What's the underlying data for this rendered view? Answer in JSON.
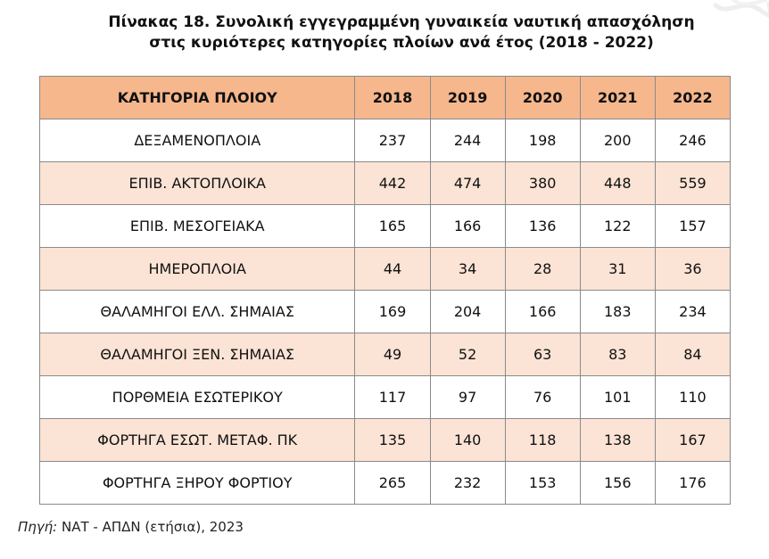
{
  "title": {
    "line1": "Πίνακας 18. Συνολική εγγεγραμμένη γυναικεία ναυτική απασχόληση",
    "line2": "στις κυριότερες κατηγορίες πλοίων ανά έτος (2018 - 2022)"
  },
  "table": {
    "headers": [
      "ΚΑΤΗΓΟΡΙΑ ΠΛΟΙΟΥ",
      "2018",
      "2019",
      "2020",
      "2021",
      "2022"
    ],
    "rows": [
      [
        "ΔΕΞΑΜΕΝΟΠΛΟΙΑ",
        "237",
        "244",
        "198",
        "200",
        "246"
      ],
      [
        "ΕΠΙΒ. ΑΚΤΟΠΛΟΙΚΑ",
        "442",
        "474",
        "380",
        "448",
        "559"
      ],
      [
        "ΕΠΙΒ. ΜΕΣΟΓΕΙΑΚΑ",
        "165",
        "166",
        "136",
        "122",
        "157"
      ],
      [
        "ΗΜΕΡΟΠΛΟΙΑ",
        "44",
        "34",
        "28",
        "31",
        "36"
      ],
      [
        "ΘΑΛΑΜΗΓΟΙ ΕΛΛ. ΣΗΜΑΙΑΣ",
        "169",
        "204",
        "166",
        "183",
        "234"
      ],
      [
        "ΘΑΛΑΜΗΓΟΙ ΞΕΝ. ΣΗΜΑΙΑΣ",
        "49",
        "52",
        "63",
        "83",
        "84"
      ],
      [
        "ΠΟΡΘΜΕΙΑ ΕΣΩΤΕΡΙΚΟΥ",
        "117",
        "97",
        "76",
        "101",
        "110"
      ],
      [
        "ΦΟΡΤΗΓΑ ΕΣΩΤ. ΜΕΤΑΦ. ΠΚ",
        "135",
        "140",
        "118",
        "138",
        "167"
      ],
      [
        "ΦΟΡΤΗΓΑ ΞΗΡΟΥ ΦΟΡΤΙΟΥ",
        "265",
        "232",
        "153",
        "156",
        "176"
      ]
    ]
  },
  "source": {
    "label": "Πηγή:",
    "text": " ΝΑΤ - ΑΠΔΝ (ετήσια), 2023"
  },
  "colors": {
    "header_bg": "#f6b78d",
    "stripe_bg": "#fbe3d5",
    "border": "#8a8a8a"
  }
}
